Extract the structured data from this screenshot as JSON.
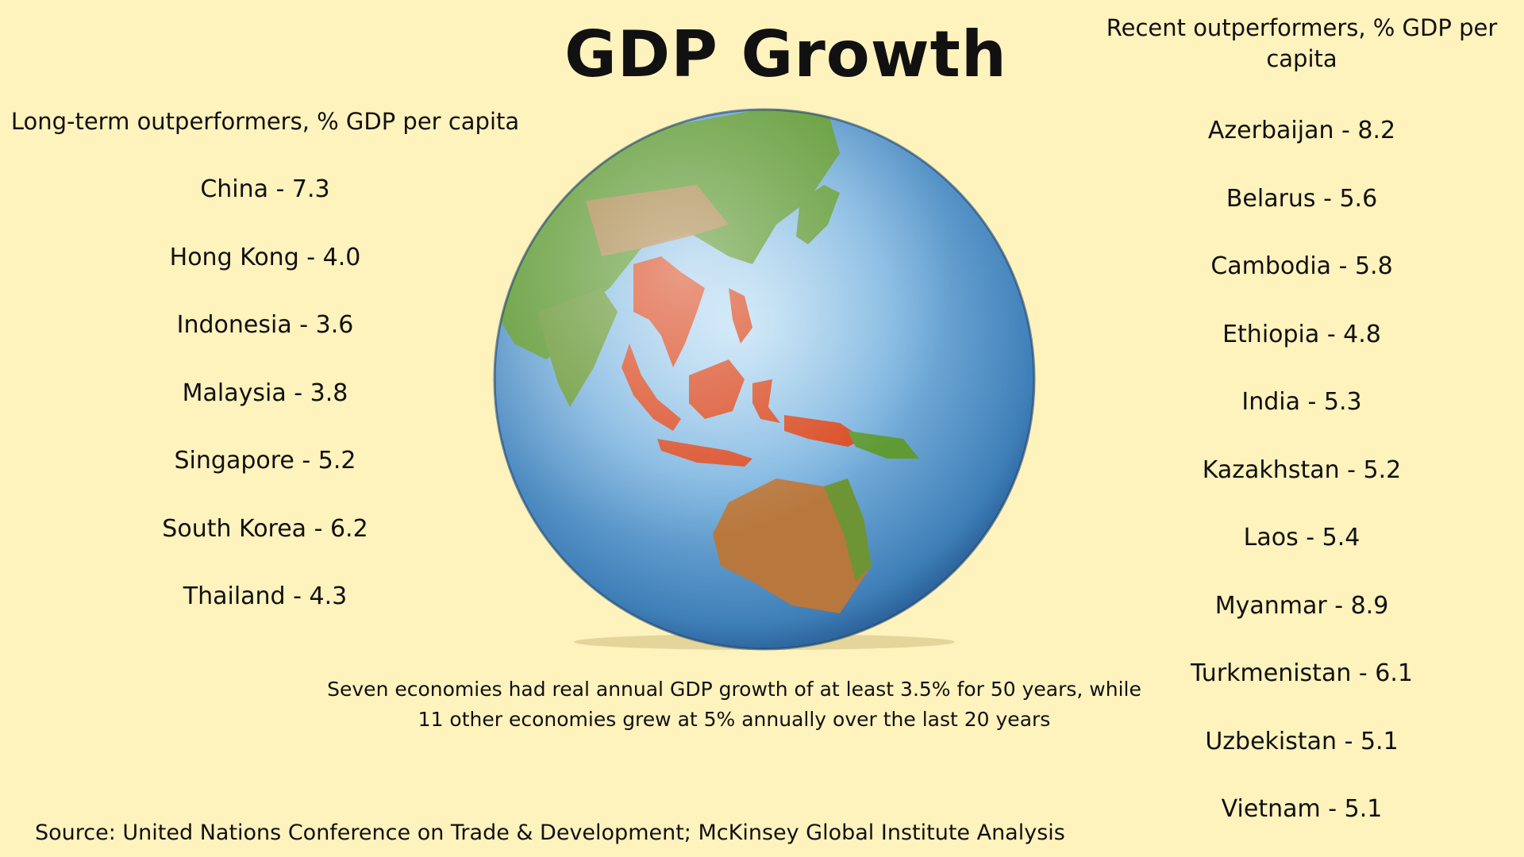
{
  "title": "GDP Growth",
  "left": {
    "heading": "Long-term outperformers, % GDP per capita",
    "items": [
      "China - 7.3",
      "Hong Kong -  4.0",
      "Indonesia - 3.6",
      "Malaysia - 3.8",
      "Singapore - 5.2",
      "South Korea - 6.2",
      "Thailand - 4.3"
    ]
  },
  "right": {
    "heading": "Recent outperformers, % GDP per capita",
    "items": [
      "Azerbaijan - 8.2",
      "Belarus - 5.6",
      "Cambodia - 5.8",
      "Ethiopia - 4.8",
      "India - 5.3",
      "Kazakhstan - 5.2",
      "Laos - 5.4",
      "Myanmar - 8.9",
      "Turkmenistan - 6.1",
      "Uzbekistan - 5.1",
      "Vietnam - 5.1"
    ]
  },
  "caption_line1": "Seven economies had real annual GDP growth of at least 3.5% for 50 years, while",
  "caption_line2": "11 other economies grew at 5% annually over the last 20 years",
  "source": "Source: United Nations Conference on Trade & Development; McKinsey Global Institute Analysis",
  "colors": {
    "background": "#fef2bd",
    "ocean": "#5d9cd0",
    "land": "#5f9a34",
    "desert": "#b58a52",
    "highlight": "#d94a22"
  }
}
